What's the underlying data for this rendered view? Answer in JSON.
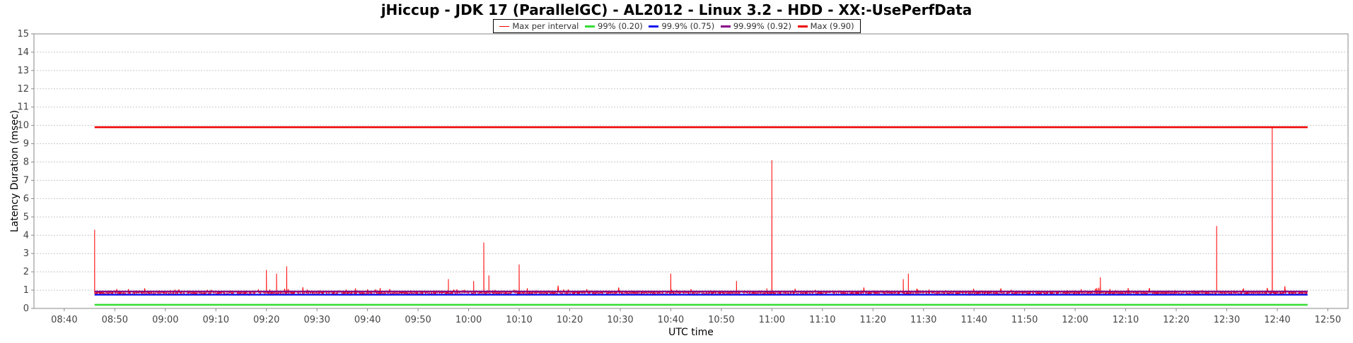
{
  "chart_data": {
    "type": "line",
    "title": "jHiccup - JDK 17 (ParallelGC) - AL2012 - Linux 3.2 - HDD - XX:-UsePerfData",
    "xlabel": "UTC time",
    "ylabel": "Latency Duration (msec)",
    "ylim": [
      0,
      15
    ],
    "yticks": [
      0,
      1,
      2,
      3,
      4,
      5,
      6,
      7,
      8,
      9,
      10,
      11,
      12,
      13,
      14,
      15
    ],
    "xlim": [
      "08:34",
      "12:54"
    ],
    "xticks": [
      "08:40",
      "08:50",
      "09:00",
      "09:10",
      "09:20",
      "09:30",
      "09:40",
      "09:50",
      "10:00",
      "10:10",
      "10:20",
      "10:30",
      "10:40",
      "10:50",
      "11:00",
      "11:10",
      "11:20",
      "11:30",
      "11:40",
      "11:50",
      "12:00",
      "12:10",
      "12:20",
      "12:30",
      "12:40",
      "12:50"
    ],
    "grid": true,
    "legend_position": "top-center",
    "x_start": "08:46",
    "x_end": "12:46",
    "series": [
      {
        "name": "Max per interval",
        "color": "#ff0000",
        "baseline": 0.85,
        "spikes": [
          {
            "x": "08:46",
            "y": 4.3
          },
          {
            "x": "09:20",
            "y": 2.1
          },
          {
            "x": "09:22",
            "y": 1.9
          },
          {
            "x": "09:24",
            "y": 2.3
          },
          {
            "x": "09:56",
            "y": 1.6
          },
          {
            "x": "10:01",
            "y": 1.5
          },
          {
            "x": "10:03",
            "y": 3.6
          },
          {
            "x": "10:04",
            "y": 1.8
          },
          {
            "x": "10:10",
            "y": 2.4
          },
          {
            "x": "10:40",
            "y": 1.9
          },
          {
            "x": "10:53",
            "y": 1.5
          },
          {
            "x": "10:59",
            "y": 1.1
          },
          {
            "x": "11:00",
            "y": 8.1
          },
          {
            "x": "11:26",
            "y": 1.6
          },
          {
            "x": "11:27",
            "y": 1.9
          },
          {
            "x": "12:05",
            "y": 1.7
          },
          {
            "x": "12:28",
            "y": 4.5
          },
          {
            "x": "12:39",
            "y": 9.9
          }
        ]
      },
      {
        "name": "99% (0.20)",
        "color": "#33dd33",
        "value": 0.2
      },
      {
        "name": "99.9% (0.75)",
        "color": "#1111ee",
        "value": 0.75
      },
      {
        "name": "99.99% (0.92)",
        "color": "#880088",
        "value": 0.92
      },
      {
        "name": "Max (9.90)",
        "color": "#ee0000",
        "value": 9.9
      }
    ]
  }
}
